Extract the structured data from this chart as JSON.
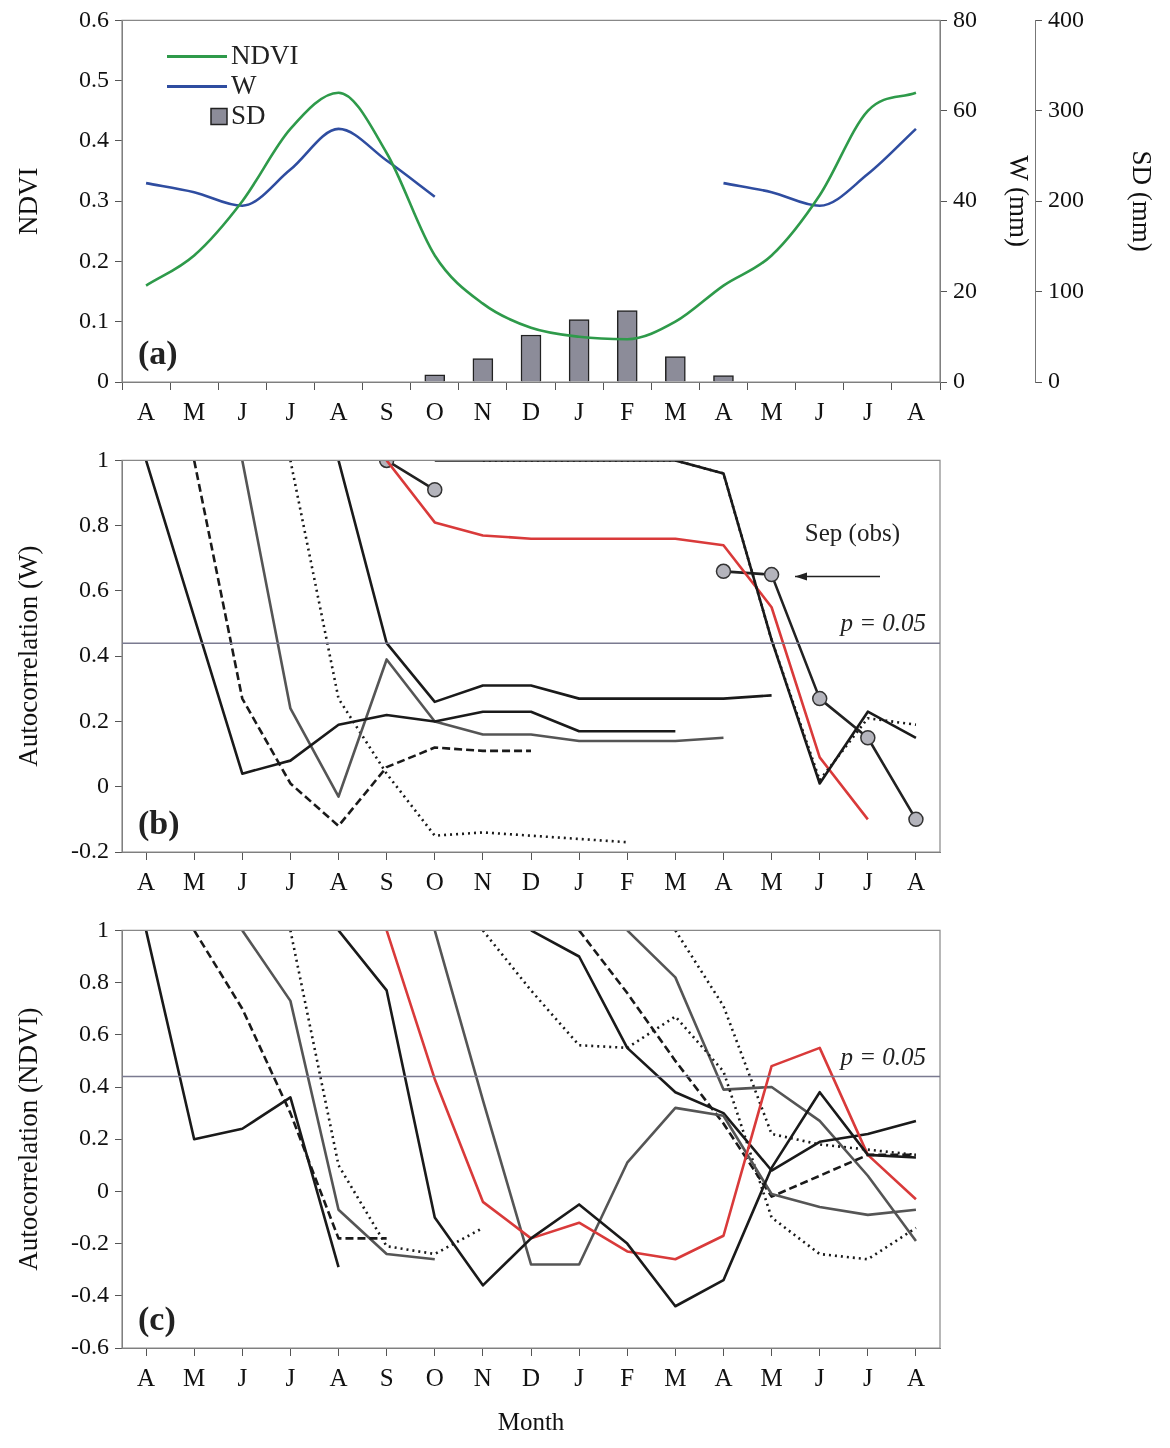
{
  "chart_data": [
    {
      "type": "line",
      "categories": [
        "A",
        "M",
        "J",
        "J",
        "A",
        "S",
        "O",
        "N",
        "D",
        "J",
        "F",
        "M",
        "A",
        "M",
        "J",
        "J",
        "A"
      ],
      "ylabel": "NDVI",
      "y2label": "W (mm)",
      "y3label": "SD (mm)",
      "ylim": [
        0,
        0.6
      ],
      "yticks": [
        0,
        0.1,
        0.2,
        0.3,
        0.4,
        0.5,
        0.6
      ],
      "y2lim": [
        0,
        80
      ],
      "y2ticks": [
        0,
        20,
        40,
        60,
        80
      ],
      "y3lim": [
        0,
        400
      ],
      "y3ticks": [
        0,
        100,
        200,
        300,
        400
      ],
      "legend": "top left",
      "annotations": [
        "(a)"
      ],
      "series": [
        {
          "name": "NDVI",
          "color": "#2e9a4a",
          "values": [
            0.16,
            0.21,
            0.3,
            0.42,
            0.48,
            0.38,
            0.21,
            0.13,
            0.09,
            0.075,
            0.071,
            0.1,
            0.16,
            0.21,
            0.31,
            0.45,
            0.48
          ]
        },
        {
          "name": "W",
          "color": "#2f4da0",
          "axis": "y2",
          "values": [
            44,
            42,
            39,
            47,
            56,
            49,
            41,
            null,
            null,
            null,
            null,
            null,
            44,
            42,
            39,
            46,
            56
          ]
        },
        {
          "name": "SD",
          "type": "bar",
          "color": "#8c8c99",
          "axis": "y3",
          "values": [
            null,
            null,
            null,
            null,
            null,
            null,
            8,
            26,
            52,
            69,
            79,
            28,
            7,
            null,
            null,
            null,
            null
          ]
        }
      ]
    },
    {
      "type": "line",
      "categories": [
        "A",
        "M",
        "J",
        "J",
        "A",
        "S",
        "O",
        "N",
        "D",
        "J",
        "F",
        "M",
        "A",
        "M",
        "J",
        "J",
        "A"
      ],
      "ylabel": "Autocorrelation (W)",
      "ylim": [
        -0.2,
        1
      ],
      "yticks": [
        -0.2,
        0,
        0.2,
        0.4,
        0.6,
        0.8,
        1
      ],
      "ref_lines": [
        {
          "axis": "y",
          "value": 0.44,
          "color": "#7a7a90"
        }
      ],
      "annotations": [
        "(b)",
        "Sep (obs)",
        "p = 0.05"
      ],
      "series": [
        {
          "color": "#1a1a1a",
          "values": [
            1,
            0.52,
            0.04,
            0.08,
            0.19,
            0.22,
            0.2,
            0.23,
            0.23,
            0.17,
            0.17,
            0.17,
            null,
            null,
            null,
            null,
            null
          ]
        },
        {
          "color": "#1a1a1a",
          "line_style": "dashed",
          "values": [
            null,
            1,
            0.27,
            0.01,
            -0.12,
            0.06,
            0.12,
            0.11,
            0.11,
            null,
            null,
            null,
            null,
            null,
            null,
            null,
            null
          ]
        },
        {
          "color": "#555555",
          "values": [
            null,
            null,
            1,
            0.24,
            -0.03,
            0.39,
            0.2,
            0.16,
            0.16,
            0.14,
            0.14,
            0.14,
            0.15,
            null,
            null,
            null,
            null
          ]
        },
        {
          "color": "#1a1a1a",
          "line_style": "dotted",
          "values": [
            null,
            null,
            null,
            1,
            0.27,
            0.04,
            -0.15,
            -0.14,
            -0.15,
            -0.16,
            -0.17,
            null,
            null,
            null,
            null,
            null,
            null
          ]
        },
        {
          "color": "#1a1a1a",
          "values": [
            null,
            null,
            null,
            null,
            1,
            0.44,
            0.26,
            0.31,
            0.31,
            0.27,
            0.27,
            0.27,
            0.27,
            0.28,
            null,
            null,
            null
          ]
        },
        {
          "color": "#1a1a1a",
          "values": [
            null,
            null,
            null,
            null,
            null,
            null,
            1,
            1,
            1,
            1,
            1,
            1,
            0.96,
            0.45,
            0.01,
            0.23,
            0.15
          ]
        },
        {
          "color": "#1a1a1a",
          "line_style": "dotted",
          "values": [
            null,
            null,
            null,
            null,
            null,
            null,
            null,
            1,
            1,
            1,
            1,
            1,
            0.96,
            0.45,
            0.02,
            0.21,
            0.19
          ]
        },
        {
          "color": "#d93a3a",
          "values": [
            null,
            null,
            null,
            null,
            null,
            1,
            0.81,
            0.77,
            0.76,
            0.76,
            0.76,
            0.76,
            0.74,
            0.55,
            0.09,
            -0.1,
            null
          ]
        },
        {
          "color": "#222222",
          "marker": "circle",
          "values": [
            null,
            null,
            null,
            null,
            null,
            1,
            0.91,
            null,
            null,
            null,
            null,
            null,
            0.66,
            0.65,
            0.27,
            0.15,
            -0.1
          ]
        }
      ]
    },
    {
      "type": "line",
      "categories": [
        "A",
        "M",
        "J",
        "J",
        "A",
        "S",
        "O",
        "N",
        "D",
        "J",
        "F",
        "M",
        "A",
        "M",
        "J",
        "J",
        "A"
      ],
      "xlabel": "Month",
      "ylabel": "Autocorrelation (NDVI)",
      "ylim": [
        -0.6,
        1
      ],
      "yticks": [
        -0.6,
        -0.4,
        -0.2,
        0,
        0.2,
        0.4,
        0.6,
        0.8,
        1
      ],
      "ref_lines": [
        {
          "axis": "y",
          "value": 0.44,
          "color": "#7a7a90"
        }
      ],
      "annotations": [
        "(c)",
        "p = 0.05"
      ],
      "series": [
        {
          "color": "#1a1a1a",
          "values": [
            1,
            0.2,
            0.24,
            0.36,
            -0.29,
            null,
            null,
            null,
            null,
            null,
            null,
            null,
            null,
            null,
            null,
            null,
            null
          ]
        },
        {
          "color": "#1a1a1a",
          "line_style": "dashed",
          "values": [
            null,
            1,
            0.7,
            0.3,
            -0.18,
            -0.18,
            null,
            null,
            null,
            null,
            null,
            null,
            null,
            null,
            null,
            null,
            null
          ]
        },
        {
          "color": "#555555",
          "values": [
            null,
            null,
            1,
            0.73,
            -0.07,
            -0.24,
            -0.26,
            null,
            null,
            null,
            null,
            null,
            null,
            null,
            null,
            null,
            null
          ]
        },
        {
          "color": "#1a1a1a",
          "line_style": "dotted",
          "values": [
            null,
            null,
            null,
            1,
            0.1,
            -0.21,
            -0.24,
            -0.14,
            null,
            null,
            null,
            null,
            null,
            null,
            null,
            null,
            null
          ]
        },
        {
          "color": "#1a1a1a",
          "values": [
            null,
            null,
            null,
            null,
            1,
            0.77,
            -0.1,
            -0.36,
            -0.18,
            -0.05,
            -0.2,
            -0.44,
            -0.34,
            0.09,
            0.38,
            0.14,
            0.13
          ]
        },
        {
          "color": "#d93a3a",
          "values": [
            null,
            null,
            null,
            null,
            null,
            1,
            0.43,
            -0.04,
            -0.18,
            -0.12,
            -0.23,
            -0.26,
            -0.17,
            0.48,
            0.55,
            0.14,
            -0.03
          ]
        },
        {
          "color": "#555555",
          "values": [
            null,
            null,
            null,
            null,
            null,
            null,
            1,
            0.35,
            -0.28,
            -0.28,
            0.11,
            0.32,
            0.29,
            -0.01,
            -0.06,
            -0.09,
            -0.07
          ]
        },
        {
          "color": "#1a1a1a",
          "line_style": "dotted",
          "values": [
            null,
            null,
            null,
            null,
            null,
            null,
            null,
            1,
            0.77,
            0.56,
            0.55,
            0.67,
            0.46,
            -0.1,
            -0.24,
            -0.26,
            -0.14
          ]
        },
        {
          "color": "#1a1a1a",
          "values": [
            null,
            null,
            null,
            null,
            null,
            null,
            null,
            null,
            1,
            0.9,
            0.55,
            0.38,
            0.3,
            0.08,
            0.19,
            0.22,
            0.27
          ]
        },
        {
          "color": "#1a1a1a",
          "line_style": "dashed",
          "values": [
            null,
            null,
            null,
            null,
            null,
            null,
            null,
            null,
            null,
            1,
            0.76,
            0.5,
            0.26,
            -0.02,
            0.06,
            0.14,
            0.14
          ]
        },
        {
          "color": "#555555",
          "values": [
            null,
            null,
            null,
            null,
            null,
            null,
            null,
            null,
            null,
            null,
            1,
            0.82,
            0.39,
            0.4,
            0.27,
            0.06,
            -0.19
          ]
        },
        {
          "color": "#1a1a1a",
          "line_style": "dotted",
          "values": [
            null,
            null,
            null,
            null,
            null,
            null,
            null,
            null,
            null,
            null,
            null,
            1,
            0.71,
            0.22,
            0.18,
            0.16,
            0.14
          ]
        }
      ]
    }
  ]
}
